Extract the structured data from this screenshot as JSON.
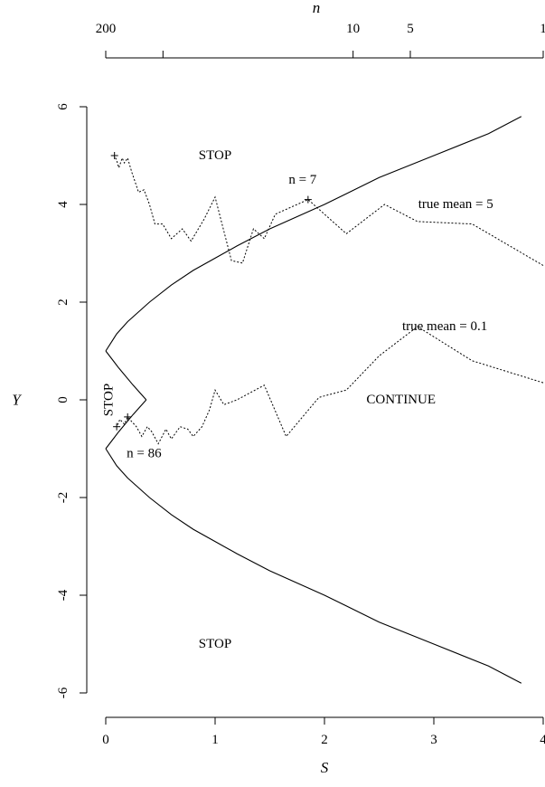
{
  "chart_data": {
    "type": "line",
    "xlabel": "S",
    "ylabel": "Y",
    "top_axis_label": "n",
    "xlim": [
      0,
      4
    ],
    "ylim": [
      -6,
      6
    ],
    "x_ticks": [
      "0",
      "1",
      "2",
      "3",
      "4"
    ],
    "y_ticks": [
      "-6",
      "-4",
      "-2",
      "0",
      "2",
      "4",
      "6"
    ],
    "top_ticks": [
      {
        "n": 200,
        "label": "200"
      },
      {
        "n": 100,
        "label": ""
      },
      {
        "n": 10,
        "label": "10"
      },
      {
        "n": 5,
        "label": "5"
      },
      {
        "n": 1,
        "label": "1"
      }
    ],
    "boundary": {
      "upper": [
        [
          0,
          1
        ],
        [
          0.1,
          1.35
        ],
        [
          0.2,
          1.6
        ],
        [
          0.4,
          2.0
        ],
        [
          0.6,
          2.35
        ],
        [
          0.8,
          2.65
        ],
        [
          1.0,
          2.9
        ],
        [
          1.2,
          3.15
        ],
        [
          1.5,
          3.5
        ],
        [
          2.0,
          4.0
        ],
        [
          2.5,
          4.55
        ],
        [
          3.0,
          5.0
        ],
        [
          3.5,
          5.45
        ],
        [
          3.8,
          5.8
        ]
      ],
      "lower": [
        [
          0,
          -1
        ],
        [
          0.1,
          -1.35
        ],
        [
          0.2,
          -1.6
        ],
        [
          0.4,
          -2.0
        ],
        [
          0.6,
          -2.35
        ],
        [
          0.8,
          -2.65
        ],
        [
          1.0,
          -2.9
        ],
        [
          1.2,
          -3.15
        ],
        [
          1.5,
          -3.5
        ],
        [
          2.0,
          -4.0
        ],
        [
          2.5,
          -4.55
        ],
        [
          3.0,
          -5.0
        ],
        [
          3.5,
          -5.45
        ],
        [
          3.8,
          -5.8
        ]
      ],
      "inner_upper": [
        [
          0,
          1
        ],
        [
          0.12,
          0.65
        ],
        [
          0.25,
          0.3
        ],
        [
          0.37,
          0
        ]
      ],
      "inner_lower": [
        [
          0,
          -1
        ],
        [
          0.12,
          -0.65
        ],
        [
          0.25,
          -0.3
        ],
        [
          0.37,
          0
        ]
      ]
    },
    "series": [
      {
        "annotation": "true mean = 5",
        "points": [
          [
            4.0,
            2.75
          ],
          [
            3.35,
            3.6
          ],
          [
            2.85,
            3.65
          ],
          [
            2.55,
            4.0
          ],
          [
            2.2,
            3.4
          ],
          [
            1.85,
            4.1
          ],
          [
            1.75,
            4.0
          ],
          [
            1.55,
            3.8
          ],
          [
            1.45,
            3.3
          ],
          [
            1.35,
            3.5
          ],
          [
            1.25,
            2.8
          ],
          [
            1.15,
            2.85
          ],
          [
            1.0,
            4.15
          ],
          [
            0.9,
            3.7
          ],
          [
            0.78,
            3.25
          ],
          [
            0.7,
            3.5
          ],
          [
            0.6,
            3.3
          ],
          [
            0.52,
            3.6
          ],
          [
            0.45,
            3.6
          ],
          [
            0.4,
            4.0
          ],
          [
            0.35,
            4.3
          ],
          [
            0.3,
            4.25
          ],
          [
            0.27,
            4.45
          ],
          [
            0.24,
            4.65
          ],
          [
            0.2,
            4.95
          ],
          [
            0.17,
            4.85
          ],
          [
            0.15,
            4.95
          ],
          [
            0.12,
            4.75
          ],
          [
            0.1,
            4.9
          ],
          [
            0.08,
            5.0
          ]
        ]
      },
      {
        "annotation": "true mean = 0.1",
        "points": [
          [
            4.0,
            0.35
          ],
          [
            3.35,
            0.8
          ],
          [
            2.85,
            1.5
          ],
          [
            2.5,
            0.9
          ],
          [
            2.2,
            0.2
          ],
          [
            1.95,
            0.05
          ],
          [
            1.65,
            -0.75
          ],
          [
            1.45,
            0.3
          ],
          [
            1.2,
            0.0
          ],
          [
            1.08,
            -0.1
          ],
          [
            1.0,
            0.2
          ],
          [
            0.95,
            -0.2
          ],
          [
            0.88,
            -0.55
          ],
          [
            0.8,
            -0.75
          ],
          [
            0.75,
            -0.6
          ],
          [
            0.68,
            -0.55
          ],
          [
            0.6,
            -0.8
          ],
          [
            0.55,
            -0.6
          ],
          [
            0.48,
            -0.9
          ],
          [
            0.42,
            -0.65
          ],
          [
            0.38,
            -0.55
          ],
          [
            0.33,
            -0.75
          ],
          [
            0.28,
            -0.55
          ],
          [
            0.24,
            -0.45
          ],
          [
            0.2,
            -0.35
          ],
          [
            0.17,
            -0.5
          ],
          [
            0.13,
            -0.4
          ],
          [
            0.1,
            -0.55
          ]
        ]
      }
    ],
    "annotations": [
      {
        "text": "STOP",
        "x": 1.0,
        "y": 5.0
      },
      {
        "text": "STOP",
        "x": 1.0,
        "y": -5.0
      },
      {
        "text": "CONTINUE",
        "x": 2.7,
        "y": 0.0
      },
      {
        "text": "n = 7",
        "x": 1.8,
        "y": 4.5
      },
      {
        "text": "true mean = 5",
        "x": 3.2,
        "y": 4.0
      },
      {
        "text": "true mean = 0.1",
        "x": 3.1,
        "y": 1.5
      },
      {
        "text": "n = 86",
        "x": 0.35,
        "y": -1.1
      },
      {
        "text": "STOP",
        "x": 0.03,
        "y": 0.0
      }
    ]
  }
}
